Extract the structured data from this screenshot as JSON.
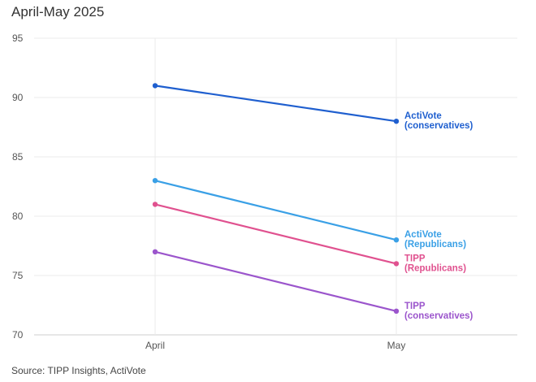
{
  "chart_data": {
    "type": "line",
    "title": "April-May 2025",
    "source": "Source: TIPP Insights, ActiVote",
    "categories": [
      "April",
      "May"
    ],
    "ylim": [
      70,
      95
    ],
    "yticks": [
      70,
      75,
      80,
      85,
      90,
      95
    ],
    "grid": true,
    "legend": "direct-labels-right",
    "series": [
      {
        "name": "ActiVote (conservatives)",
        "label_lines": [
          "ActiVote",
          "(conservatives)"
        ],
        "values": [
          91,
          88
        ],
        "color": "#1f5fcf"
      },
      {
        "name": "ActiVote (Republicans)",
        "label_lines": [
          "ActiVote",
          "(Republicans)"
        ],
        "values": [
          83,
          78
        ],
        "color": "#3aa0e6"
      },
      {
        "name": "TIPP (Republicans)",
        "label_lines": [
          "TIPP",
          "(Republicans)"
        ],
        "values": [
          81,
          76
        ],
        "color": "#e0518f"
      },
      {
        "name": "TIPP (conservatives)",
        "label_lines": [
          "TIPP",
          "(conservatives)"
        ],
        "values": [
          77,
          72
        ],
        "color": "#9b55cc"
      }
    ]
  }
}
